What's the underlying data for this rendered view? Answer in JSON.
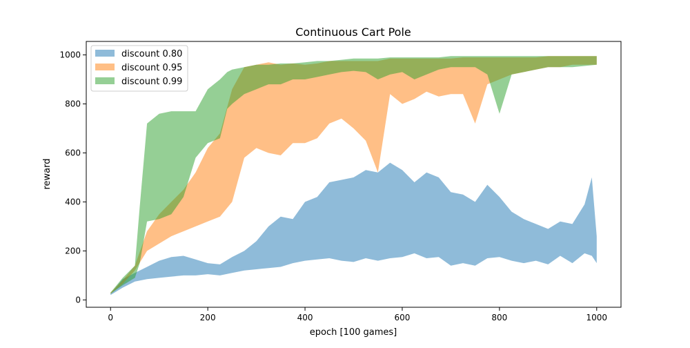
{
  "chart_data": {
    "type": "area",
    "title": "Continuous Cart Pole",
    "xlabel": "epoch [100 games]",
    "ylabel": "reward",
    "xlim": [
      -50,
      1050
    ],
    "ylim": [
      -30,
      1055
    ],
    "x_ticks": [
      0,
      200,
      400,
      600,
      800,
      1000
    ],
    "y_ticks": [
      0,
      200,
      400,
      600,
      800,
      1000
    ],
    "legend_position": "top-left",
    "grid": false,
    "series": [
      {
        "name": "discount 0.80",
        "color": "#1f77b4",
        "opacity": 0.5,
        "x": [
          0,
          25,
          50,
          75,
          100,
          125,
          150,
          175,
          200,
          225,
          250,
          275,
          300,
          325,
          350,
          375,
          400,
          425,
          450,
          475,
          500,
          525,
          550,
          575,
          600,
          625,
          650,
          675,
          700,
          725,
          750,
          775,
          800,
          825,
          850,
          875,
          900,
          925,
          950,
          975,
          990,
          1000
        ],
        "lower": [
          20,
          50,
          75,
          85,
          90,
          95,
          100,
          100,
          105,
          100,
          110,
          120,
          125,
          130,
          135,
          150,
          160,
          165,
          170,
          160,
          155,
          170,
          160,
          170,
          175,
          190,
          170,
          175,
          140,
          150,
          140,
          170,
          175,
          160,
          150,
          160,
          145,
          180,
          150,
          190,
          180,
          150
        ],
        "upper": [
          25,
          85,
          110,
          135,
          160,
          175,
          180,
          165,
          150,
          145,
          175,
          200,
          240,
          300,
          340,
          330,
          400,
          420,
          480,
          490,
          500,
          530,
          520,
          560,
          530,
          480,
          520,
          500,
          440,
          430,
          400,
          470,
          420,
          360,
          330,
          310,
          290,
          320,
          310,
          390,
          500,
          260
        ]
      },
      {
        "name": "discount 0.95",
        "color": "#ff7f0e",
        "opacity": 0.5,
        "x": [
          0,
          25,
          50,
          75,
          100,
          125,
          150,
          175,
          200,
          225,
          250,
          275,
          300,
          325,
          350,
          375,
          400,
          425,
          450,
          475,
          500,
          525,
          550,
          575,
          600,
          625,
          650,
          675,
          700,
          725,
          750,
          775,
          800,
          825,
          850,
          875,
          900,
          925,
          950,
          975,
          1000
        ],
        "lower": [
          25,
          65,
          120,
          200,
          230,
          260,
          280,
          300,
          320,
          340,
          400,
          580,
          620,
          600,
          590,
          640,
          640,
          660,
          720,
          740,
          700,
          650,
          520,
          840,
          800,
          820,
          850,
          830,
          840,
          840,
          720,
          880,
          900,
          920,
          930,
          940,
          950,
          950,
          960,
          960,
          960
        ],
        "upper": [
          30,
          80,
          140,
          280,
          350,
          400,
          450,
          520,
          620,
          680,
          860,
          950,
          960,
          970,
          960,
          965,
          960,
          965,
          975,
          975,
          975,
          975,
          975,
          985,
          985,
          985,
          985,
          985,
          985,
          990,
          990,
          990,
          990,
          990,
          990,
          990,
          995,
          995,
          995,
          995,
          995
        ]
      },
      {
        "name": "discount 0.99",
        "color": "#2ca02c",
        "opacity": 0.5,
        "x": [
          0,
          25,
          50,
          60,
          75,
          100,
          125,
          150,
          175,
          200,
          225,
          240,
          250,
          275,
          300,
          325,
          350,
          375,
          400,
          425,
          450,
          475,
          500,
          525,
          550,
          575,
          600,
          625,
          650,
          675,
          700,
          725,
          750,
          775,
          800,
          825,
          850,
          875,
          900,
          925,
          950,
          975,
          1000
        ],
        "lower": [
          25,
          60,
          90,
          150,
          320,
          330,
          350,
          420,
          580,
          640,
          660,
          780,
          800,
          840,
          860,
          880,
          880,
          900,
          900,
          910,
          920,
          930,
          935,
          930,
          900,
          920,
          930,
          900,
          920,
          940,
          950,
          950,
          950,
          920,
          760,
          920,
          930,
          940,
          950,
          950,
          950,
          955,
          960
        ],
        "upper": [
          30,
          90,
          140,
          380,
          720,
          760,
          770,
          770,
          770,
          860,
          900,
          930,
          940,
          950,
          960,
          960,
          965,
          965,
          970,
          975,
          975,
          980,
          985,
          985,
          985,
          990,
          990,
          990,
          990,
          990,
          995,
          995,
          995,
          995,
          995,
          995,
          995,
          995,
          995,
          995,
          995,
          995,
          995
        ]
      }
    ]
  }
}
